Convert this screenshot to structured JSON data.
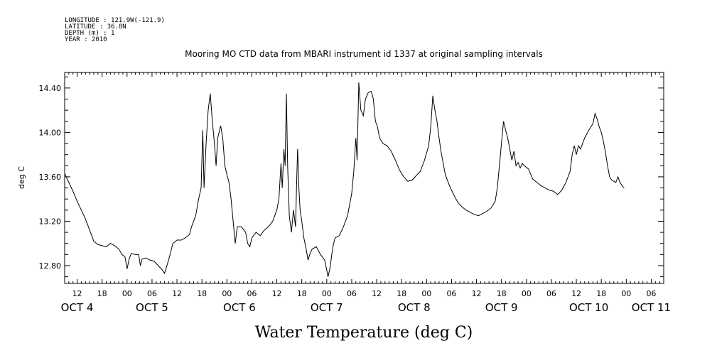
{
  "meta": {
    "longitude": "LONGITUDE : 121.9W(-121.9)",
    "latitude": "LATITUDE : 36.8N",
    "depth": "DEPTH (m) : 1",
    "year": "YEAR : 2010"
  },
  "chart_data": {
    "type": "line",
    "title": "Mooring MO CTD data from MBARI instrument id 1337 at original sampling intervals",
    "xlabel": "Water Temperature (deg C)",
    "ylabel": "deg C",
    "x_unit": "hours since OCT 4 00:00",
    "xlim": [
      9,
      153
    ],
    "ylim": [
      12.64,
      14.54
    ],
    "yticks": [
      12.8,
      13.2,
      13.6,
      14.0,
      14.4
    ],
    "ytick_labels": [
      "12.80",
      "13.20",
      "13.60",
      "14.00",
      "14.40"
    ],
    "hour_ticks": [
      {
        "x": 12,
        "label": "12"
      },
      {
        "x": 18,
        "label": "18"
      },
      {
        "x": 24,
        "label": "00"
      },
      {
        "x": 30,
        "label": "06"
      },
      {
        "x": 36,
        "label": "12"
      },
      {
        "x": 42,
        "label": "18"
      },
      {
        "x": 48,
        "label": "00"
      },
      {
        "x": 54,
        "label": "06"
      },
      {
        "x": 60,
        "label": "12"
      },
      {
        "x": 66,
        "label": "18"
      },
      {
        "x": 72,
        "label": "00"
      },
      {
        "x": 78,
        "label": "06"
      },
      {
        "x": 84,
        "label": "12"
      },
      {
        "x": 90,
        "label": "18"
      },
      {
        "x": 96,
        "label": "00"
      },
      {
        "x": 102,
        "label": "06"
      },
      {
        "x": 108,
        "label": "12"
      },
      {
        "x": 114,
        "label": "18"
      },
      {
        "x": 120,
        "label": "00"
      },
      {
        "x": 126,
        "label": "06"
      },
      {
        "x": 132,
        "label": "12"
      },
      {
        "x": 138,
        "label": "18"
      },
      {
        "x": 144,
        "label": "00"
      },
      {
        "x": 150,
        "label": "06"
      }
    ],
    "day_labels": [
      {
        "x": 12,
        "label": "OCT  4"
      },
      {
        "x": 30,
        "label": "OCT  5"
      },
      {
        "x": 51,
        "label": "OCT  6"
      },
      {
        "x": 72,
        "label": "OCT  7"
      },
      {
        "x": 93,
        "label": "OCT  8"
      },
      {
        "x": 114,
        "label": "OCT  9"
      },
      {
        "x": 135,
        "label": "OCT 10"
      },
      {
        "x": 150,
        "label": "OCT 11"
      }
    ],
    "series": [
      {
        "color": "#000000",
        "points": [
          [
            9,
            13.63
          ],
          [
            10,
            13.55
          ],
          [
            11,
            13.47
          ],
          [
            12,
            13.38
          ],
          [
            13,
            13.3
          ],
          [
            14,
            13.22
          ],
          [
            15,
            13.12
          ],
          [
            16,
            13.02
          ],
          [
            17,
            12.99
          ],
          [
            18,
            12.98
          ],
          [
            19,
            12.97
          ],
          [
            20,
            13.0
          ],
          [
            21,
            12.98
          ],
          [
            22,
            12.95
          ],
          [
            22.8,
            12.9
          ],
          [
            23.5,
            12.88
          ],
          [
            24,
            12.77
          ],
          [
            24.5,
            12.86
          ],
          [
            25,
            12.91
          ],
          [
            26,
            12.9
          ],
          [
            26.8,
            12.9
          ],
          [
            27.2,
            12.8
          ],
          [
            27.6,
            12.86
          ],
          [
            28.5,
            12.87
          ],
          [
            29.5,
            12.85
          ],
          [
            30.5,
            12.84
          ],
          [
            31.5,
            12.8
          ],
          [
            32.5,
            12.76
          ],
          [
            33,
            12.73
          ],
          [
            33.5,
            12.79
          ],
          [
            34.2,
            12.88
          ],
          [
            35,
            13.0
          ],
          [
            36,
            13.03
          ],
          [
            37,
            13.03
          ],
          [
            38,
            13.05
          ],
          [
            39,
            13.08
          ],
          [
            39.5,
            13.15
          ],
          [
            40.5,
            13.25
          ],
          [
            41.2,
            13.4
          ],
          [
            41.8,
            13.5
          ],
          [
            42.2,
            14.02
          ],
          [
            42.5,
            13.5
          ],
          [
            43,
            13.9
          ],
          [
            43.5,
            14.2
          ],
          [
            44,
            14.35
          ],
          [
            44.5,
            14.1
          ],
          [
            45,
            13.9
          ],
          [
            45.4,
            13.7
          ],
          [
            45.8,
            13.95
          ],
          [
            46.5,
            14.06
          ],
          [
            47,
            13.95
          ],
          [
            47.5,
            13.7
          ],
          [
            48,
            13.62
          ],
          [
            48.5,
            13.55
          ],
          [
            49,
            13.4
          ],
          [
            49.5,
            13.2
          ],
          [
            50,
            13.0
          ],
          [
            50.5,
            13.15
          ],
          [
            51.5,
            13.15
          ],
          [
            52.5,
            13.1
          ],
          [
            53,
            13.0
          ],
          [
            53.5,
            12.97
          ],
          [
            54,
            13.05
          ],
          [
            55,
            13.1
          ],
          [
            56,
            13.07
          ],
          [
            57,
            13.12
          ],
          [
            58,
            13.15
          ],
          [
            59,
            13.2
          ],
          [
            60,
            13.3
          ],
          [
            60.5,
            13.4
          ],
          [
            61,
            13.72
          ],
          [
            61.3,
            13.5
          ],
          [
            61.7,
            13.85
          ],
          [
            62,
            13.7
          ],
          [
            62.3,
            14.35
          ],
          [
            62.6,
            13.7
          ],
          [
            63,
            13.25
          ],
          [
            63.5,
            13.1
          ],
          [
            64,
            13.3
          ],
          [
            64.5,
            13.15
          ],
          [
            64.8,
            13.6
          ],
          [
            65,
            13.85
          ],
          [
            65.3,
            13.5
          ],
          [
            65.6,
            13.3
          ],
          [
            66,
            13.2
          ],
          [
            66.5,
            13.05
          ],
          [
            67,
            12.96
          ],
          [
            67.5,
            12.85
          ],
          [
            68,
            12.91
          ],
          [
            68.5,
            12.95
          ],
          [
            69.5,
            12.97
          ],
          [
            70.5,
            12.9
          ],
          [
            71.5,
            12.85
          ],
          [
            72,
            12.76
          ],
          [
            72.3,
            12.7
          ],
          [
            72.8,
            12.78
          ],
          [
            73.2,
            12.9
          ],
          [
            73.6,
            12.99
          ],
          [
            74,
            13.05
          ],
          [
            75,
            13.07
          ],
          [
            76,
            13.15
          ],
          [
            77,
            13.25
          ],
          [
            77.5,
            13.35
          ],
          [
            78,
            13.45
          ],
          [
            78.5,
            13.65
          ],
          [
            79,
            13.95
          ],
          [
            79.3,
            13.75
          ],
          [
            79.7,
            14.45
          ],
          [
            80.2,
            14.2
          ],
          [
            80.8,
            14.15
          ],
          [
            81.3,
            14.3
          ],
          [
            82,
            14.36
          ],
          [
            82.7,
            14.37
          ],
          [
            83.2,
            14.3
          ],
          [
            83.7,
            14.1
          ],
          [
            84.2,
            14.05
          ],
          [
            84.7,
            13.95
          ],
          [
            85.5,
            13.9
          ],
          [
            86.5,
            13.88
          ],
          [
            87.5,
            13.83
          ],
          [
            88.5,
            13.75
          ],
          [
            89.5,
            13.66
          ],
          [
            90.5,
            13.6
          ],
          [
            91.5,
            13.56
          ],
          [
            92.5,
            13.57
          ],
          [
            93.5,
            13.61
          ],
          [
            94.5,
            13.65
          ],
          [
            95.5,
            13.75
          ],
          [
            96.5,
            13.88
          ],
          [
            97,
            14.05
          ],
          [
            97.5,
            14.33
          ],
          [
            98,
            14.2
          ],
          [
            98.5,
            14.1
          ],
          [
            99,
            13.95
          ],
          [
            99.5,
            13.82
          ],
          [
            100,
            13.72
          ],
          [
            100.5,
            13.62
          ],
          [
            101.5,
            13.52
          ],
          [
            102.5,
            13.44
          ],
          [
            103.5,
            13.37
          ],
          [
            104.5,
            13.33
          ],
          [
            105.5,
            13.3
          ],
          [
            106.5,
            13.28
          ],
          [
            107.5,
            13.26
          ],
          [
            108.5,
            13.25
          ],
          [
            109.5,
            13.27
          ],
          [
            110.5,
            13.29
          ],
          [
            111.5,
            13.32
          ],
          [
            112.5,
            13.38
          ],
          [
            113,
            13.5
          ],
          [
            113.5,
            13.7
          ],
          [
            114,
            13.9
          ],
          [
            114.5,
            14.1
          ],
          [
            115,
            14.02
          ],
          [
            115.5,
            13.95
          ],
          [
            116,
            13.85
          ],
          [
            116.5,
            13.75
          ],
          [
            117,
            13.83
          ],
          [
            117.5,
            13.7
          ],
          [
            118,
            13.73
          ],
          [
            118.5,
            13.68
          ],
          [
            119,
            13.72
          ],
          [
            119.5,
            13.7
          ],
          [
            120.5,
            13.67
          ],
          [
            121.5,
            13.58
          ],
          [
            122.5,
            13.55
          ],
          [
            123.5,
            13.52
          ],
          [
            124.5,
            13.5
          ],
          [
            125.5,
            13.48
          ],
          [
            126.5,
            13.47
          ],
          [
            127.5,
            13.44
          ],
          [
            128.5,
            13.48
          ],
          [
            129.5,
            13.55
          ],
          [
            130.5,
            13.65
          ],
          [
            131,
            13.8
          ],
          [
            131.5,
            13.88
          ],
          [
            132,
            13.8
          ],
          [
            132.5,
            13.88
          ],
          [
            133,
            13.85
          ],
          [
            134,
            13.95
          ],
          [
            135,
            14.02
          ],
          [
            136,
            14.08
          ],
          [
            136.5,
            14.17
          ],
          [
            137,
            14.12
          ],
          [
            137.5,
            14.05
          ],
          [
            138,
            14.0
          ],
          [
            138.5,
            13.92
          ],
          [
            139,
            13.82
          ],
          [
            139.5,
            13.7
          ],
          [
            140,
            13.6
          ],
          [
            140.5,
            13.57
          ],
          [
            141,
            13.56
          ],
          [
            141.5,
            13.55
          ],
          [
            142,
            13.6
          ],
          [
            142.5,
            13.55
          ],
          [
            143,
            13.52
          ],
          [
            143.5,
            13.5
          ]
        ]
      }
    ]
  }
}
